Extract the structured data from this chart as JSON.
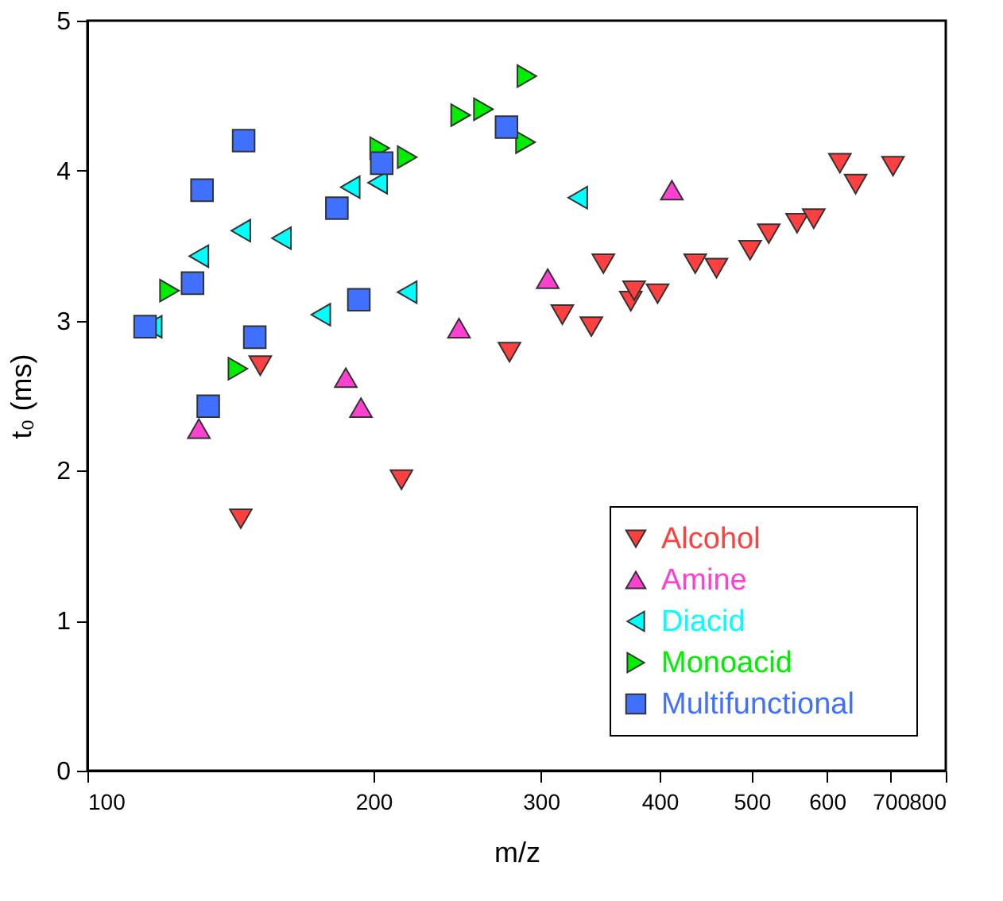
{
  "chart_data": {
    "type": "scatter",
    "xlabel": "m/z",
    "ylabel": "t₀ (ms)",
    "log": "x",
    "xlim": [
      100,
      800
    ],
    "xticks": [
      100,
      200,
      300,
      400,
      500,
      600,
      700,
      800
    ],
    "ylim": [
      0,
      5
    ],
    "yticks": [
      0,
      1,
      2,
      3,
      4,
      5
    ],
    "grid": false,
    "legend": "bottom right",
    "series": [
      {
        "name": "Alcohol",
        "color": "#ff4040",
        "marker": "triangle-down",
        "x": [
          145,
          152,
          214,
          278,
          316,
          339,
          349,
          373,
          376,
          398,
          436,
          459,
          498,
          521,
          558,
          581,
          619,
          643,
          704
        ],
        "values": [
          1.68,
          2.7,
          1.94,
          2.79,
          3.04,
          2.96,
          3.38,
          3.13,
          3.2,
          3.18,
          3.38,
          3.35,
          3.47,
          3.58,
          3.65,
          3.68,
          4.05,
          3.91,
          4.03
        ]
      },
      {
        "name": "Amine",
        "color": "#ff40d0",
        "marker": "triangle-up",
        "x": [
          131,
          187,
          194,
          246,
          305,
          412
        ],
        "values": [
          2.28,
          2.62,
          2.42,
          2.95,
          3.28,
          3.87
        ]
      },
      {
        "name": "Diacid",
        "color": "#00ffff",
        "marker": "triangle-left",
        "x": [
          117,
          131,
          145,
          160,
          176,
          189,
          202,
          217,
          328
        ],
        "values": [
          2.96,
          3.43,
          3.6,
          3.55,
          3.04,
          3.89,
          3.92,
          3.19,
          3.82
        ]
      },
      {
        "name": "Monoacid",
        "color": "#00ee00",
        "marker": "triangle-right",
        "x": [
          122,
          144,
          203,
          217,
          247,
          261,
          290,
          289
        ],
        "values": [
          3.2,
          2.68,
          4.15,
          4.09,
          4.37,
          4.41,
          4.63,
          4.19
        ]
      },
      {
        "name": "Multifunctional",
        "color": "#4070ff",
        "marker": "square",
        "x": [
          115,
          129,
          132,
          146,
          134,
          150,
          183,
          193,
          204,
          276
        ],
        "values": [
          2.96,
          3.25,
          3.87,
          4.2,
          2.43,
          2.89,
          3.75,
          3.14,
          4.05,
          4.29
        ]
      }
    ]
  }
}
